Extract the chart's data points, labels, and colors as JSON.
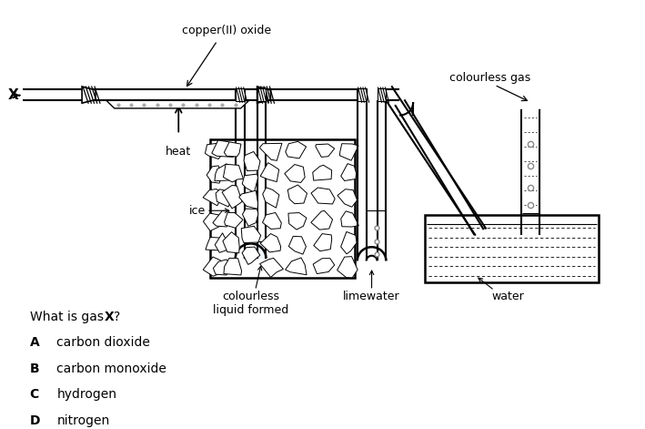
{
  "background_color": "#ffffff",
  "line_color": "#000000",
  "labels": {
    "copper_oxide": "copper(II) oxide",
    "colourless_gas": "colourless gas",
    "heat": "heat",
    "ice": "ice",
    "colourless_liquid": "colourless\nliquid formed",
    "limewater": "limewater",
    "water": "water",
    "x_label": "X",
    "option_A": "carbon dioxide",
    "option_B": "carbon monoxide",
    "option_C": "hydrogen",
    "option_D": "nitrogen"
  },
  "fig_width": 7.09,
  "fig_height": 4.71,
  "dpi": 100
}
